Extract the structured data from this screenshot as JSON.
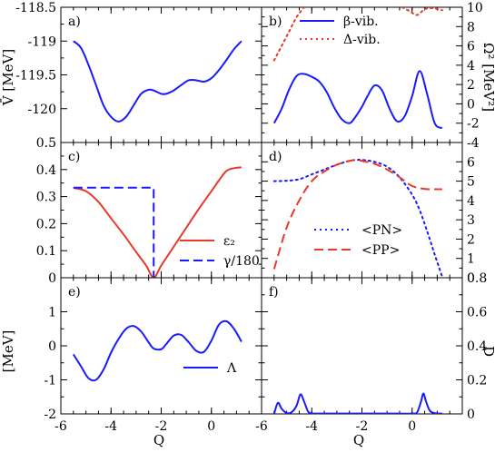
{
  "figure": {
    "xlabel_left": "Q",
    "xlabel_right": "Q",
    "ylabel_a": "V̄ [MeV]",
    "ylabel_b": "Ω² [MeV²]",
    "ylabel_e": "[MeV]",
    "ylabel_f": "D"
  },
  "chart_data": [
    {
      "id": "a",
      "panel_label": "a)",
      "type": "line",
      "xlim": [
        -6,
        2
      ],
      "ylim": [
        -120.5,
        -118.5
      ],
      "xticks": [
        -6,
        -4,
        -2,
        0
      ],
      "xticklabels": [],
      "yticks": [
        -120,
        -119.5,
        -119,
        -118.5
      ],
      "yticklabels": [
        "-120",
        "-119.5",
        "-119",
        "-118.5"
      ],
      "series": [
        {
          "color": "#1a1aff",
          "dash": "solid",
          "x": [
            -5.5,
            -5.2,
            -4.9,
            -4.6,
            -4.3,
            -4.0,
            -3.7,
            -3.4,
            -3.1,
            -2.8,
            -2.5,
            -2.3,
            -2.0,
            -1.8,
            -1.5,
            -1.2,
            -0.9,
            -0.6,
            -0.3,
            0.0,
            0.3,
            0.6,
            0.9,
            1.2
          ],
          "y": [
            -119.0,
            -119.1,
            -119.35,
            -119.65,
            -119.95,
            -120.12,
            -120.19,
            -120.12,
            -119.95,
            -119.78,
            -119.72,
            -119.73,
            -119.78,
            -119.78,
            -119.73,
            -119.65,
            -119.58,
            -119.58,
            -119.6,
            -119.55,
            -119.43,
            -119.28,
            -119.12,
            -119.0
          ]
        }
      ]
    },
    {
      "id": "b",
      "panel_label": "b)",
      "type": "line",
      "xlim": [
        -6,
        2
      ],
      "ylim": [
        -4,
        10
      ],
      "xticks": [
        -6,
        -4,
        -2,
        0
      ],
      "xticklabels": [],
      "yticks": [
        -4,
        -2,
        0,
        2,
        4,
        6,
        8,
        10
      ],
      "yticklabels": [
        "-4",
        "-2",
        "0",
        "2",
        "4",
        "6",
        "8",
        "10"
      ],
      "legend": [
        "β-vib.",
        "Δ-vib."
      ],
      "series": [
        {
          "name": "β-vib.",
          "color": "#1a1aff",
          "dash": "solid",
          "x": [
            -5.5,
            -5.2,
            -4.9,
            -4.6,
            -4.3,
            -4.0,
            -3.7,
            -3.4,
            -3.1,
            -2.8,
            -2.5,
            -2.3,
            -2.0,
            -1.8,
            -1.5,
            -1.2,
            -0.9,
            -0.6,
            -0.3,
            0.0,
            0.3,
            0.6,
            0.9,
            1.2
          ],
          "y": [
            -2.0,
            -0.5,
            1.5,
            2.9,
            3.1,
            2.8,
            2.3,
            1.2,
            -0.4,
            -1.6,
            -2.0,
            -1.5,
            -0.3,
            0.7,
            1.9,
            1.4,
            -0.5,
            -1.8,
            -1.3,
            0.8,
            3.4,
            1.0,
            -2.0,
            -2.5
          ]
        },
        {
          "name": "Δ-vib.",
          "color": "#e8392b",
          "dash": "dotted",
          "x": [
            -5.5,
            -5.2,
            -4.9,
            -4.6,
            -4.3
          ],
          "y": [
            4.5,
            6.0,
            7.5,
            9.0,
            10.0
          ]
        },
        {
          "color": "#e8392b",
          "dash": "dotted",
          "x": [
            -0.4,
            -0.1,
            0.2,
            0.5,
            0.8,
            1.2
          ],
          "y": [
            10.0,
            9.6,
            9.2,
            9.8,
            9.9,
            9.7
          ]
        }
      ]
    },
    {
      "id": "c",
      "panel_label": "c)",
      "type": "line",
      "xlim": [
        -6,
        2
      ],
      "ylim": [
        0,
        0.5
      ],
      "xticks": [
        -6,
        -4,
        -2,
        0
      ],
      "xticklabels": [],
      "yticks": [
        0,
        0.1,
        0.2,
        0.3,
        0.4,
        0.5
      ],
      "yticklabels": [
        "0",
        "0.1",
        "0.2",
        "0.3",
        "0.4",
        "0.5"
      ],
      "legend": [
        "ε₂",
        "γ/180"
      ],
      "series": [
        {
          "name": "ε₂",
          "color": "#e8392b",
          "dash": "solid",
          "x": [
            -5.5,
            -5.0,
            -4.5,
            -4.0,
            -3.5,
            -3.0,
            -2.6,
            -2.3,
            -2.0,
            -1.5,
            -1.0,
            -0.5,
            0.0,
            0.3,
            0.6,
            0.9,
            1.2
          ],
          "y": [
            0.332,
            0.32,
            0.28,
            0.22,
            0.16,
            0.095,
            0.045,
            0.0,
            0.045,
            0.115,
            0.185,
            0.255,
            0.32,
            0.36,
            0.395,
            0.405,
            0.408
          ]
        },
        {
          "name": "γ/180",
          "color": "#1a1aff",
          "dash": "dashed",
          "x": [
            -5.5,
            -2.3,
            -2.3,
            -2.3
          ],
          "y": [
            0.333,
            0.333,
            0.333,
            0.0
          ]
        }
      ]
    },
    {
      "id": "d",
      "panel_label": "d)",
      "type": "line",
      "xlim": [
        -6,
        2
      ],
      "ylim": [
        0,
        7
      ],
      "xticks": [
        -6,
        -4,
        -2,
        0
      ],
      "xticklabels": [],
      "yticks": [
        0,
        1,
        2,
        3,
        4,
        5,
        6
      ],
      "yticklabels": [
        "0",
        "1",
        "2",
        "3",
        "4",
        "5",
        "6"
      ],
      "legend": [
        "<PN>",
        "<PP>"
      ],
      "series": [
        {
          "name": "<PN>",
          "color": "#1a1aff",
          "dash": "dotted",
          "x": [
            -5.5,
            -5.0,
            -4.5,
            -4.0,
            -3.5,
            -3.0,
            -2.5,
            -2.2,
            -2.0,
            -1.5,
            -1.0,
            -0.5,
            0.0,
            0.3,
            0.6,
            0.9,
            1.2
          ],
          "y": [
            5.0,
            5.02,
            5.1,
            5.35,
            5.6,
            5.85,
            6.05,
            6.1,
            6.1,
            6.0,
            5.75,
            5.2,
            4.3,
            3.5,
            2.4,
            1.2,
            0.05
          ]
        },
        {
          "name": "<PP>",
          "color": "#e8392b",
          "dash": "dashed",
          "x": [
            -5.5,
            -5.0,
            -4.5,
            -4.0,
            -3.5,
            -3.0,
            -2.5,
            -2.2,
            -2.0,
            -1.5,
            -1.0,
            -0.5,
            0.0,
            0.5,
            1.0,
            1.2
          ],
          "y": [
            0.45,
            2.6,
            4.0,
            5.0,
            5.5,
            5.85,
            6.05,
            6.1,
            6.05,
            5.9,
            5.6,
            5.2,
            4.75,
            4.6,
            4.58,
            4.58
          ]
        }
      ]
    },
    {
      "id": "e",
      "panel_label": "e)",
      "type": "line",
      "xlim": [
        -6,
        2
      ],
      "ylim": [
        -2,
        2
      ],
      "xticks": [
        -6,
        -4,
        -2,
        0
      ],
      "xticklabels": [
        "-6",
        "-4",
        "-2",
        "0"
      ],
      "yticks": [
        -2,
        -1,
        0,
        1
      ],
      "yticklabels": [
        "-2",
        "-1",
        "0",
        "1"
      ],
      "legend": [
        "Λ"
      ],
      "series": [
        {
          "name": "Λ",
          "color": "#1a1aff",
          "dash": "solid",
          "x": [
            -5.5,
            -5.2,
            -4.9,
            -4.6,
            -4.3,
            -4.0,
            -3.7,
            -3.4,
            -3.1,
            -2.8,
            -2.5,
            -2.3,
            -2.0,
            -1.8,
            -1.5,
            -1.2,
            -0.9,
            -0.6,
            -0.3,
            0.0,
            0.3,
            0.6,
            0.9,
            1.2
          ],
          "y": [
            -0.25,
            -0.6,
            -0.95,
            -1.0,
            -0.7,
            -0.2,
            0.2,
            0.5,
            0.58,
            0.42,
            0.1,
            -0.08,
            -0.1,
            0.05,
            0.3,
            0.32,
            0.1,
            -0.15,
            -0.18,
            0.15,
            0.62,
            0.72,
            0.5,
            0.12
          ]
        }
      ]
    },
    {
      "id": "f",
      "panel_label": "f)",
      "type": "line",
      "xlim": [
        -6,
        2
      ],
      "ylim": [
        0,
        0.8
      ],
      "xticks": [
        -6,
        -4,
        -2,
        0
      ],
      "xticklabels": [
        "-6",
        "-4",
        "-2",
        "0"
      ],
      "yticks": [
        0,
        0.2,
        0.4,
        0.6,
        0.8
      ],
      "yticklabels": [
        "0",
        "0.2",
        "0.4",
        "0.6",
        "0.8"
      ],
      "series": [
        {
          "color": "#1a1aff",
          "dash": "solid",
          "x": [
            -5.5,
            -5.35,
            -5.2,
            -5.0,
            -4.8,
            -4.6,
            -4.45,
            -4.3,
            -4.15,
            -4.0,
            -3.5,
            -3.0,
            -2.0,
            -1.0,
            0.0,
            0.2,
            0.35,
            0.45,
            0.55,
            0.7,
            0.9,
            1.2
          ],
          "y": [
            0.0,
            0.065,
            0.03,
            0.005,
            0.01,
            0.05,
            0.115,
            0.07,
            0.015,
            0.003,
            0.002,
            0.002,
            0.002,
            0.002,
            0.002,
            0.01,
            0.07,
            0.12,
            0.075,
            0.02,
            0.004,
            0.002
          ]
        }
      ]
    }
  ]
}
